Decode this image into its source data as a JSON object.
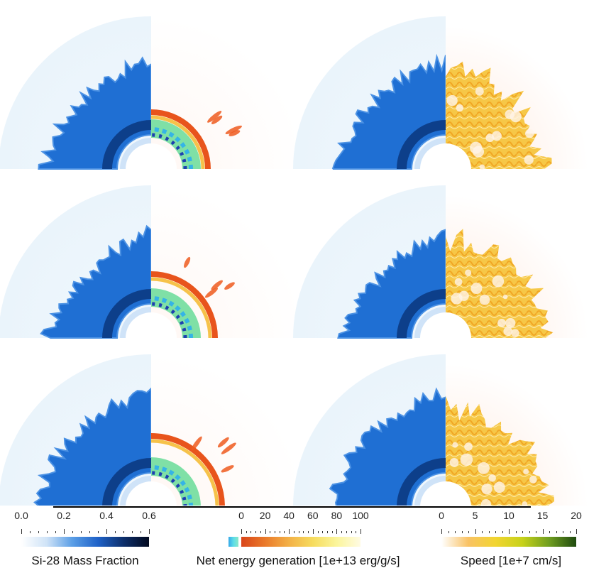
{
  "colorbars": {
    "si28": {
      "title": "Si-28 Mass Fraction",
      "ticks": [
        "0.0",
        "0.2",
        "0.4",
        "0.6"
      ],
      "range": [
        0.0,
        0.6
      ],
      "colors": [
        "#ffffff",
        "#cfe3f7",
        "#5a9ee6",
        "#1f62c8",
        "#0d2f6b",
        "#02091e"
      ]
    },
    "energy": {
      "title": "Net energy generation [1e+13 erg/g/s]",
      "ticks": [
        "0",
        "20",
        "40",
        "60",
        "80",
        "100"
      ],
      "range": [
        0,
        100
      ],
      "colors": [
        "#d9451a",
        "#ea7a2a",
        "#f3b147",
        "#f6dc5e",
        "#fbf59b",
        "#fffbe3"
      ],
      "negative_colors": [
        "#36a9e8",
        "#5ddde8",
        "#8ae8c7"
      ]
    },
    "speed": {
      "title": "Speed [1e+7 cm/s]",
      "ticks": [
        "0",
        "5",
        "10",
        "15",
        "20"
      ],
      "range": [
        0,
        20
      ],
      "colors": [
        "#ffffff",
        "#f9c264",
        "#f2d531",
        "#c7d21a",
        "#6f9e20",
        "#1f4a0f"
      ]
    }
  },
  "panels": {
    "rows": 3,
    "left_field": "Si-28 Mass Fraction",
    "left_right_field": "Net energy generation",
    "right_right_field": "Speed"
  }
}
